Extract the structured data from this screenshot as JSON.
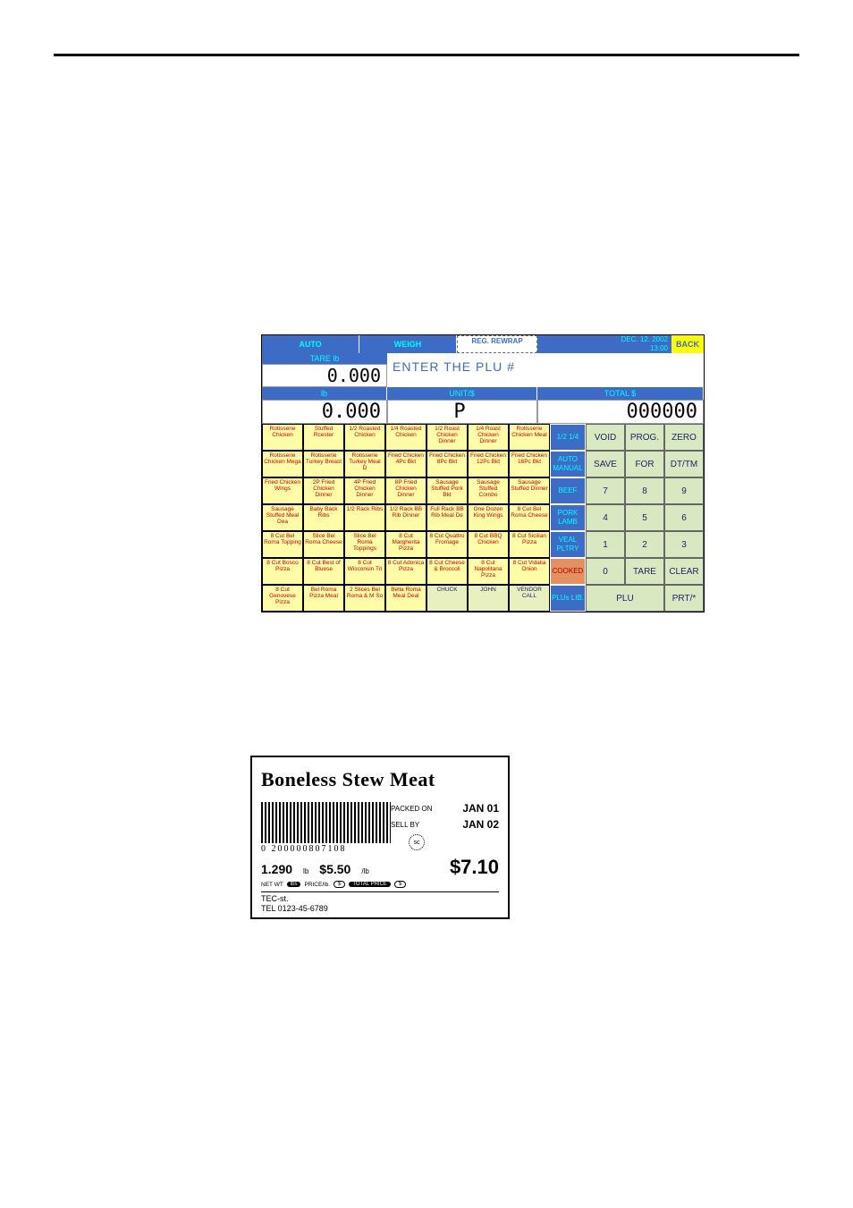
{
  "pos": {
    "auto": "AUTO",
    "weigh": "WEIGH",
    "rewrap": "REG. REWRAP",
    "date": "DEC. 12. 2002",
    "time": "13:00",
    "back": "BACK",
    "tare_lbl": "TARE  lb",
    "tare_val": "0.000",
    "enter": "ENTER THE PLU #",
    "lb_hdr": "lb",
    "unit_hdr": "UNIT/$",
    "total_hdr": "TOTAL $",
    "lb_val": "0.000",
    "unit_val": "P",
    "total_val": "000000",
    "plu_rows": [
      [
        "Rotisserie Chicken",
        "Stuffed Rcester",
        "1/2 Roasted Chicken",
        "1/4 Roasted Chicken",
        "1/2 Roast Chicken Dinner",
        "1/4 Roast Chicken Dinner",
        "Rotisserie Chicken Meal"
      ],
      [
        "Rotisserie Chicken Mega",
        "Rotisserie Turkey Breast",
        "Rotisserie Turkey Meal D",
        "Fried Chicken 4Pc Bkt",
        "Fried Chicken 8Pc Bkt",
        "Fried Chicken 12Pc Bkt",
        "Fried Chicken 16Pc Bkt"
      ],
      [
        "Fried Chicken Wings",
        "2P Fried Chicken Dinner",
        "4P Fried Chicken Dinner",
        "8P Fried Chicken Dinner",
        "Sausage Stuffed Pork Bkt",
        "Sausage Stuffed Combo",
        "Sausage Stuffed Dinner"
      ],
      [
        "Sausage Stuffed Meal Dea",
        "Baby Back Ribs",
        "1/2 Rack Ribs",
        "1/2 Rack BB Rib Dinner",
        "Full Rack BB Rib Meal De",
        "One Dozen King Wings",
        "8 Cut Bel Roma Cheese"
      ],
      [
        "8 Cut Bel Roma Topping",
        "Slice Bel Roma Cheese",
        "Slice Bel Roma Toppings",
        "8 Cut Margherita Pizza",
        "8 Cut Quattro Fromage",
        "8 Cut BBQ Chicken",
        "8 Cut Sicilian Pizza"
      ],
      [
        "8 Cut Bosco Pizza",
        "8 Cut Best of Bluese",
        "8 Cut Wisconsin Tri",
        "8 Cut Adonica Pizza",
        "8 Cut Cheese & Broccoli",
        "8 Cut Napolitana Pizza",
        "8 Cut Vidalia Onion"
      ],
      [
        "8 Cut Genovese Pizza",
        "Bel Roma Pizza Meal",
        "2 Slices Bel Roma & M So",
        "Bella Roma Meal Deal",
        "CHUCK",
        "JOHN",
        "VENDOR CALL"
      ]
    ],
    "cats": [
      "1/2 1/4",
      "AUTO MANUAL",
      "BEEF",
      "PORK LAMB",
      "VEAL PLTRY",
      "COOKED",
      "PLUs LIB."
    ],
    "keypad": [
      [
        "VOID",
        "PROG.",
        "ZERO"
      ],
      [
        "SAVE",
        "FOR",
        "DT/TM"
      ],
      [
        "7",
        "8",
        "9"
      ],
      [
        "4",
        "5",
        "6"
      ],
      [
        "1",
        "2",
        "3"
      ],
      [
        "0",
        "TARE",
        "CLEAR"
      ]
    ],
    "plu_btn": "PLU",
    "prt_btn": "PRT/*"
  },
  "label": {
    "title": "Boneless Stew Meat",
    "barcode": "0  200000807108",
    "packed_lbl": "PACKED ON",
    "packed_val": "JAN 01",
    "sell_lbl": "SELL BY",
    "sell_val": "JAN 02",
    "sc": "sc",
    "wt": "1.290",
    "wt_u": "lb",
    "pp": "$5.50",
    "pp_u": "/lb",
    "total": "$7.10",
    "ft_netwt": "NET WT",
    "ft_lbs": "lbs",
    "ft_price": "PRICE/lb.",
    "ft_d": "$",
    "ft_tp": "TOTAL PRICE",
    "ft_d2": "$",
    "addr1": "TEC-st.",
    "addr2": "TEL 0123-45-6789"
  }
}
